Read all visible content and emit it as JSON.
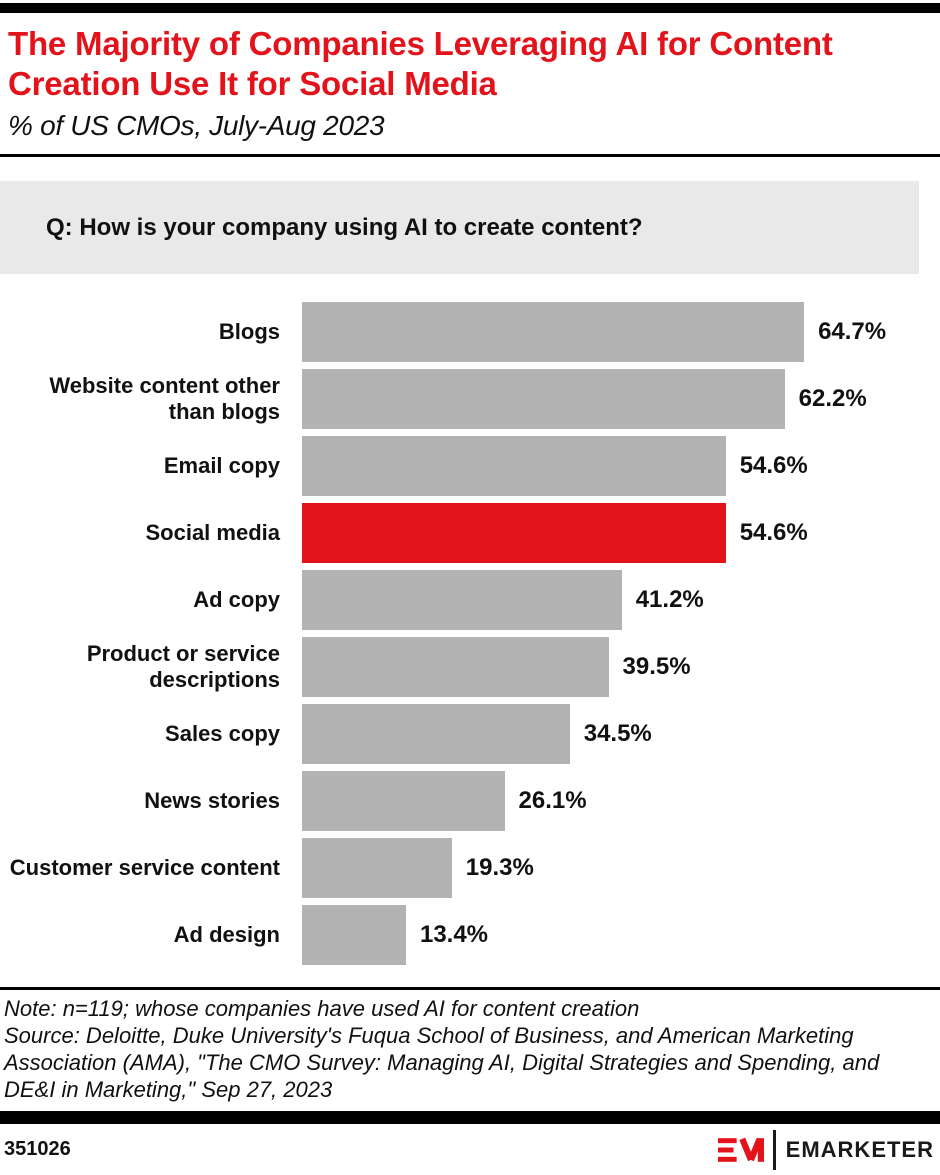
{
  "header": {
    "title": "The Majority of Companies Leveraging AI for Content Creation Use It for Social Media",
    "subtitle": "% of US CMOs, July-Aug 2023"
  },
  "question": "Q: How is your company using AI to create content?",
  "chart_data": {
    "type": "bar",
    "orientation": "horizontal",
    "title": "The Majority of Companies Leveraging AI for Content Creation Use It for Social Media",
    "subtitle": "% of US CMOs, July-Aug 2023",
    "question": "Q: How is your company using AI to create content?",
    "categories": [
      "Blogs",
      "Website content other than blogs",
      "Email copy",
      "Social media",
      "Ad copy",
      "Product or service descriptions",
      "Sales copy",
      "News stories",
      "Customer service content",
      "Ad design"
    ],
    "values": [
      64.7,
      62.2,
      54.6,
      54.6,
      41.2,
      39.5,
      34.5,
      26.1,
      19.3,
      13.4
    ],
    "value_labels": [
      "64.7%",
      "62.2%",
      "54.6%",
      "54.6%",
      "41.2%",
      "39.5%",
      "34.5%",
      "26.1%",
      "19.3%",
      "13.4%"
    ],
    "highlighted_category": "Social media",
    "xlim": [
      0,
      70
    ],
    "grid": false,
    "legend": false,
    "bar_color": "#b3b3b3",
    "highlight_color": "#e3131c",
    "data_labels_position": "outside-end"
  },
  "footnote": {
    "note": "Note: n=119; whose companies have used AI for content creation",
    "source": "Source: Deloitte, Duke University's Fuqua School of Business, and American Marketing Association (AMA), \"The CMO Survey: Managing AI, Digital Strategies and Spending, and DE&I in Marketing,\" Sep 27, 2023"
  },
  "footer": {
    "chart_id": "351026",
    "brand": "EMARKETER",
    "logo": "emarketer-em-monogram"
  },
  "colors": {
    "accent_red": "#e3131c",
    "bar_gray": "#b3b3b3",
    "question_bg": "#e9e9e9",
    "rule_black": "#000000"
  }
}
